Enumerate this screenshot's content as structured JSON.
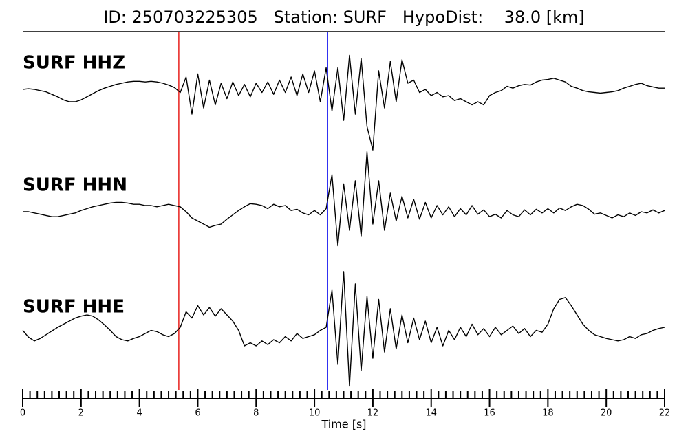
{
  "chart_data": {
    "type": "line",
    "title": "ID: 250703225305   Station: SURF   HypoDist:    38.0 [km]",
    "xlabel": "Time [s]",
    "xlim": [
      0,
      22
    ],
    "xticks": [
      0,
      2,
      4,
      6,
      8,
      10,
      12,
      14,
      16,
      18,
      20,
      22
    ],
    "xminorticks": [
      0.25,
      0.5,
      0.75,
      1,
      1.25,
      1.5,
      1.75,
      2.25,
      2.5,
      2.75,
      3,
      3.25,
      3.5,
      3.75,
      4.25,
      4.5,
      4.75,
      5,
      5.25,
      5.5,
      5.75,
      6.25,
      6.5,
      6.75,
      7,
      7.25,
      7.5,
      7.75,
      8.25,
      8.5,
      8.75,
      9,
      9.25,
      9.5,
      9.75,
      10.25,
      10.5,
      10.75,
      11,
      11.25,
      11.5,
      11.75,
      12.25,
      12.5,
      12.75,
      13,
      13.25,
      13.5,
      13.75,
      14.25,
      14.5,
      14.75,
      15,
      15.25,
      15.5,
      15.75,
      16.25,
      16.5,
      16.75,
      17,
      17.25,
      17.5,
      17.75,
      18.25,
      18.5,
      18.75,
      19,
      19.25,
      19.5,
      19.75,
      20.25,
      20.5,
      20.75,
      21,
      21.25,
      21.5,
      21.75
    ],
    "ylim": [
      -1,
      1
    ],
    "x": [
      0,
      0.2,
      0.4,
      0.6,
      0.8,
      1,
      1.2,
      1.4,
      1.6,
      1.8,
      2,
      2.2,
      2.4,
      2.6,
      2.8,
      3,
      3.2,
      3.4,
      3.6,
      3.8,
      4,
      4.2,
      4.4,
      4.6,
      4.8,
      5,
      5.2,
      5.4,
      5.6,
      5.8,
      6,
      6.2,
      6.4,
      6.6,
      6.8,
      7,
      7.2,
      7.4,
      7.6,
      7.8,
      8,
      8.2,
      8.4,
      8.6,
      8.8,
      9,
      9.2,
      9.4,
      9.6,
      9.8,
      10,
      10.2,
      10.4,
      10.6,
      10.8,
      11,
      11.2,
      11.4,
      11.6,
      11.8,
      12,
      12.2,
      12.4,
      12.6,
      12.8,
      13,
      13.2,
      13.4,
      13.6,
      13.8,
      14,
      14.2,
      14.4,
      14.6,
      14.8,
      15,
      15.2,
      15.4,
      15.6,
      15.8,
      16,
      16.2,
      16.4,
      16.6,
      16.8,
      17,
      17.2,
      17.4,
      17.6,
      17.8,
      18,
      18.2,
      18.4,
      18.6,
      18.8,
      19,
      19.2,
      19.4,
      19.6,
      19.8,
      20,
      20.2,
      20.4,
      20.6,
      20.8,
      21,
      21.2,
      21.4,
      21.6,
      21.8,
      22
    ],
    "series": [
      {
        "name": "SURF HHZ",
        "color": "#000000",
        "label_color": "#4e9a06",
        "values": [
          0,
          0.01,
          0,
          -0.02,
          -0.04,
          -0.08,
          -0.12,
          -0.17,
          -0.2,
          -0.2,
          -0.17,
          -0.12,
          -0.07,
          -0.02,
          0.02,
          0.05,
          0.08,
          0.1,
          0.12,
          0.13,
          0.13,
          0.12,
          0.13,
          0.12,
          0.1,
          0.07,
          0.03,
          -0.05,
          0.2,
          -0.4,
          0.25,
          -0.3,
          0.15,
          -0.25,
          0.1,
          -0.15,
          0.12,
          -0.1,
          0.08,
          -0.12,
          0.1,
          -0.05,
          0.12,
          -0.08,
          0.15,
          -0.05,
          0.2,
          -0.1,
          0.25,
          -0.05,
          0.3,
          -0.2,
          0.35,
          -0.35,
          0.35,
          -0.5,
          0.55,
          -0.4,
          0.5,
          -0.6,
          -0.98,
          0.3,
          -0.3,
          0.45,
          -0.2,
          0.48,
          0.1,
          0.15,
          -0.05,
          0,
          -0.1,
          -0.05,
          -0.12,
          -0.1,
          -0.18,
          -0.15,
          -0.2,
          -0.25,
          -0.2,
          -0.25,
          -0.1,
          -0.05,
          -0.02,
          0.05,
          0.02,
          0.06,
          0.08,
          0.07,
          0.12,
          0.15,
          0.16,
          0.18,
          0.15,
          0.12,
          0.05,
          0.02,
          -0.02,
          -0.04,
          -0.05,
          -0.06,
          -0.05,
          -0.04,
          -0.02,
          0.02,
          0.05,
          0.08,
          0.1,
          0.06,
          0.04,
          0.02,
          0.02
        ]
      },
      {
        "name": "SURF HHN",
        "color": "#000000",
        "label_color": "#4e9a06",
        "values": [
          0,
          0,
          -0.02,
          -0.04,
          -0.06,
          -0.08,
          -0.08,
          -0.06,
          -0.04,
          -0.02,
          0.02,
          0.05,
          0.08,
          0.1,
          0.12,
          0.14,
          0.15,
          0.15,
          0.14,
          0.12,
          0.12,
          0.1,
          0.1,
          0.08,
          0.1,
          0.12,
          0.1,
          0.08,
          0,
          -0.1,
          -0.15,
          -0.2,
          -0.25,
          -0.22,
          -0.2,
          -0.12,
          -0.05,
          0.02,
          0.08,
          0.13,
          0.12,
          0.1,
          0.05,
          0.12,
          0.08,
          0.1,
          0.02,
          0.04,
          -0.02,
          -0.05,
          0.02,
          -0.05,
          0.05,
          0.6,
          -0.55,
          0.45,
          -0.3,
          0.5,
          -0.4,
          0.97,
          -0.2,
          0.5,
          -0.3,
          0.3,
          -0.15,
          0.25,
          -0.1,
          0.2,
          -0.12,
          0.15,
          -0.1,
          0.1,
          -0.05,
          0.08,
          -0.08,
          0.05,
          -0.05,
          0.1,
          -0.04,
          0.03,
          -0.08,
          -0.04,
          -0.1,
          0.02,
          -0.05,
          -0.08,
          0.03,
          -0.05,
          0.04,
          -0.02,
          0.05,
          -0.02,
          0.06,
          0.02,
          0.08,
          0.12,
          0.1,
          0.04,
          -0.04,
          -0.02,
          -0.06,
          -0.1,
          -0.05,
          -0.08,
          -0.02,
          -0.06,
          0,
          -0.02,
          0.03,
          -0.02,
          0.02
        ]
      },
      {
        "name": "SURF HHE",
        "color": "#000000",
        "label_color": "#4e9a06",
        "values": [
          0.05,
          -0.06,
          -0.12,
          -0.08,
          -0.02,
          0.04,
          0.1,
          0.15,
          0.2,
          0.25,
          0.28,
          0.3,
          0.28,
          0.22,
          0.14,
          0.05,
          -0.05,
          -0.1,
          -0.12,
          -0.08,
          -0.05,
          0,
          0.05,
          0.03,
          -0.02,
          -0.05,
          0,
          0.1,
          0.35,
          0.25,
          0.45,
          0.3,
          0.42,
          0.28,
          0.4,
          0.3,
          0.2,
          0.05,
          -0.2,
          -0.15,
          -0.2,
          -0.12,
          -0.18,
          -0.1,
          -0.15,
          -0.05,
          -0.12,
          0,
          -0.08,
          -0.05,
          -0.02,
          0.05,
          0.1,
          0.7,
          -0.5,
          1.0,
          -0.85,
          0.8,
          -0.6,
          0.6,
          -0.4,
          0.55,
          -0.3,
          0.4,
          -0.25,
          0.3,
          -0.15,
          0.25,
          -0.1,
          0.2,
          -0.15,
          0.1,
          -0.2,
          0.05,
          -0.1,
          0.1,
          -0.05,
          0.15,
          -0.02,
          0.08,
          -0.05,
          0.1,
          -0.02,
          0.05,
          0.12,
          0,
          0.08,
          -0.05,
          0.05,
          0.02,
          0.15,
          0.4,
          0.55,
          0.58,
          0.45,
          0.3,
          0.15,
          0.05,
          -0.02,
          -0.05,
          -0.08,
          -0.1,
          -0.12,
          -0.1,
          -0.05,
          -0.08,
          -0.02,
          0,
          0.05,
          0.08,
          0.1
        ]
      }
    ],
    "picks": [
      {
        "x": 5.35,
        "color": "#e8201c"
      },
      {
        "x": 10.45,
        "color": "#2020f0"
      }
    ]
  }
}
